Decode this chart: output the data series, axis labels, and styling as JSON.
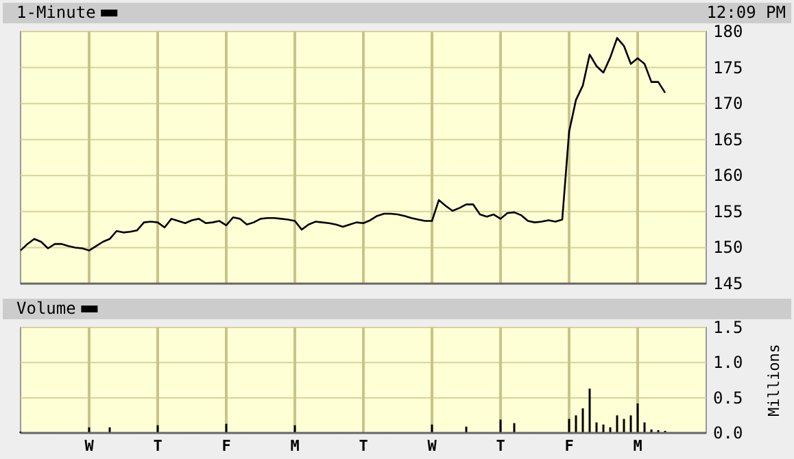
{
  "chart_data": [
    {
      "type": "line",
      "annotations": [
        "12:09 PM"
      ],
      "legend": "top left",
      "grid": true,
      "tick_labels": "y",
      "categories": [
        null,
        null,
        null,
        null,
        null,
        null,
        null,
        null,
        null,
        null,
        null,
        null,
        null,
        null,
        null,
        null,
        null,
        null,
        null,
        null,
        null,
        null,
        null,
        null,
        null,
        null,
        null,
        null,
        null,
        null,
        null,
        null,
        null,
        null,
        null,
        null,
        null,
        null,
        null,
        null,
        null,
        null,
        null,
        null,
        null,
        null,
        null,
        null,
        null,
        null,
        null,
        null,
        null,
        null,
        null,
        null,
        null,
        null,
        null,
        null,
        null,
        null,
        null,
        null,
        null,
        null,
        null,
        null,
        null,
        null,
        null,
        null,
        null,
        null,
        null,
        null,
        null,
        null,
        null,
        null,
        null,
        null,
        null,
        null,
        null,
        null,
        null,
        null,
        null,
        null,
        null,
        null,
        null,
        null,
        null,
        null,
        null,
        null,
        null,
        null,
        null
      ],
      "ylim": [
        145,
        180
      ],
      "yticks": [
        145,
        150,
        155,
        160,
        165,
        170,
        175,
        180
      ],
      "series": [
        {
          "name": "1-Minute",
          "color": "#000000",
          "values": [
            149.6,
            150.5,
            151.2,
            150.8,
            149.9,
            150.5,
            150.5,
            150.2,
            150.0,
            149.9,
            149.6,
            150.2,
            150.8,
            151.2,
            152.3,
            152.1,
            152.2,
            152.4,
            153.5,
            153.6,
            153.5,
            152.8,
            154.0,
            153.7,
            153.4,
            153.8,
            154.0,
            153.4,
            153.5,
            153.7,
            153.1,
            154.2,
            154.0,
            153.2,
            153.5,
            154.0,
            154.1,
            154.1,
            154.0,
            153.9,
            153.7,
            152.5,
            153.2,
            153.6,
            153.5,
            153.4,
            153.2,
            152.9,
            153.2,
            153.5,
            153.4,
            153.8,
            154.4,
            154.7,
            154.7,
            154.6,
            154.4,
            154.1,
            153.9,
            153.7,
            153.7,
            156.6,
            155.8,
            155.1,
            155.5,
            156.0,
            156.0,
            154.6,
            154.3,
            154.6,
            154.0,
            154.8,
            154.9,
            154.5,
            153.7,
            153.5,
            153.6,
            153.8,
            153.6,
            153.9,
            166.1,
            170.5,
            172.5,
            176.8,
            175.2,
            174.3,
            176.4,
            179.1,
            178.0,
            175.5,
            176.3,
            175.5,
            173.0,
            173.0,
            171.5,
            null,
            null,
            null,
            null,
            null,
            null
          ]
        }
      ]
    },
    {
      "type": "bar",
      "ylabel": "Millions",
      "legend": "top left",
      "grid": true,
      "categories": [
        null,
        null,
        null,
        null,
        null,
        null,
        null,
        null,
        null,
        null,
        "W",
        null,
        null,
        null,
        null,
        null,
        null,
        null,
        null,
        null,
        "T",
        null,
        null,
        null,
        null,
        null,
        null,
        null,
        null,
        null,
        "F",
        null,
        null,
        null,
        null,
        null,
        null,
        null,
        null,
        null,
        "M",
        null,
        null,
        null,
        null,
        null,
        null,
        null,
        null,
        null,
        "T",
        null,
        null,
        null,
        null,
        null,
        null,
        null,
        null,
        null,
        "W",
        null,
        null,
        null,
        null,
        null,
        null,
        null,
        null,
        null,
        "T",
        null,
        null,
        null,
        null,
        null,
        null,
        null,
        null,
        null,
        "F",
        null,
        null,
        null,
        null,
        null,
        null,
        null,
        null,
        null,
        "M",
        null,
        null,
        null,
        null,
        null,
        null,
        null,
        null,
        null,
        null
      ],
      "ylim": [
        0,
        1.5
      ],
      "yticks": [
        {
          "value": 0,
          "label": "0.0"
        },
        {
          "value": 0.5,
          "label": "0.5"
        },
        {
          "value": 1,
          "label": "1.0"
        },
        {
          "value": 1.5,
          "label": "1.5"
        }
      ],
      "series": [
        {
          "name": "Volume",
          "color": "#000000",
          "values": [
            0.02,
            0.01,
            0.01,
            0.01,
            0.01,
            0.01,
            0.01,
            0.01,
            0.01,
            0.01,
            0.08,
            0.01,
            0.01,
            0.08,
            0.01,
            0.01,
            0.01,
            0.01,
            0.01,
            0.01,
            0.11,
            0.01,
            0.01,
            0.01,
            0.01,
            0.01,
            0.01,
            0.01,
            0.01,
            0.01,
            0.13,
            0.01,
            0.01,
            0.01,
            0.01,
            0.01,
            0.01,
            0.01,
            0.01,
            0.01,
            0.11,
            0.01,
            0.01,
            0.01,
            0.01,
            0.01,
            0.01,
            0.01,
            0.01,
            0.01,
            0.01,
            0.01,
            0.01,
            0.01,
            0.01,
            0.01,
            0.01,
            0.01,
            0.01,
            0.01,
            0.12,
            0.01,
            0.01,
            0.01,
            0.01,
            0.09,
            0.01,
            0.01,
            0.01,
            0.01,
            0.19,
            0.01,
            0.14,
            0.01,
            0.01,
            0.01,
            0.01,
            0.01,
            0.01,
            0.01,
            0.2,
            0.25,
            0.35,
            0.63,
            0.15,
            0.12,
            0.08,
            0.25,
            0.2,
            0.25,
            0.42,
            0.15,
            0.05,
            0.04,
            0.03,
            null,
            null,
            null,
            null,
            null,
            null
          ]
        }
      ]
    }
  ]
}
